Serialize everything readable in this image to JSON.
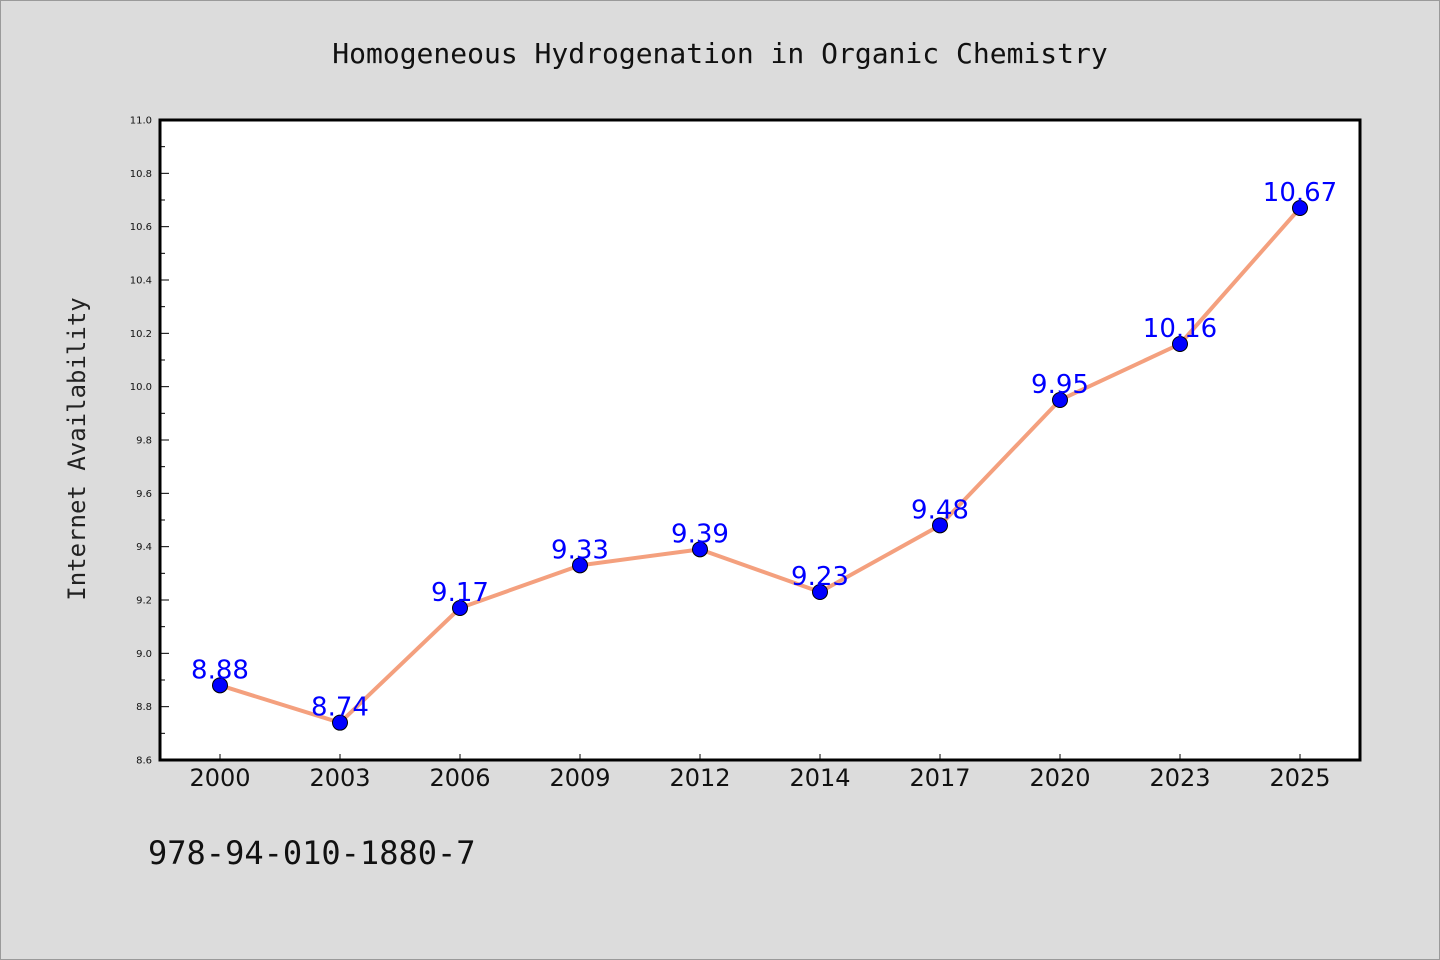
{
  "chart_data": {
    "type": "line",
    "title": "Homogeneous Hydrogenation in Organic Chemistry",
    "xlabel": "",
    "ylabel": "Internet Availability",
    "categories": [
      "2000",
      "2003",
      "2006",
      "2009",
      "2012",
      "2014",
      "2017",
      "2020",
      "2023",
      "2025"
    ],
    "series": [
      {
        "values": [
          8.88,
          8.74,
          9.17,
          9.33,
          9.39,
          9.23,
          9.48,
          9.95,
          10.16,
          10.67
        ],
        "labels": [
          "8.88",
          "8.74",
          "9.17",
          "9.33",
          "9.39",
          "9.23",
          "9.48",
          "9.95",
          "10.16",
          "10.67"
        ]
      }
    ],
    "ylim": [
      8.6,
      11.0
    ],
    "yticks": [
      "8.6",
      "8.8",
      "9.0",
      "9.2",
      "9.4",
      "9.6",
      "9.8",
      "10.0",
      "10.2",
      "10.4",
      "10.6",
      "10.8",
      "11.0"
    ],
    "grid": false,
    "legend": "none",
    "colors": {
      "line": "#f4a07e",
      "marker": "#0000ff",
      "marker_edge": "#000000",
      "data_label": "#0000ff",
      "background": "#dcdcdc",
      "plot_background": "#ffffff"
    }
  },
  "footer": {
    "isbn": "978-94-010-1880-7"
  }
}
